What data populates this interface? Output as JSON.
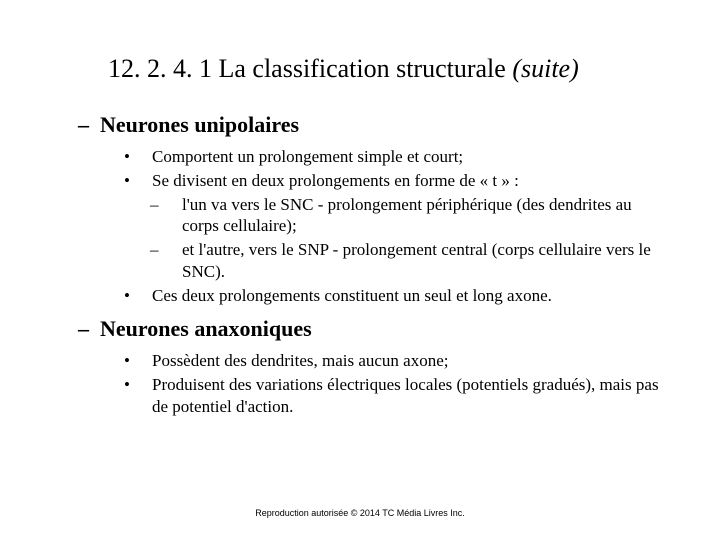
{
  "title": {
    "number": "12. 2. 4. 1",
    "text": "La classification structurale",
    "suffix": "(suite)"
  },
  "section1": {
    "heading": "Neurones unipolaires",
    "bullets": [
      "Comportent un prolongement simple et court;",
      "Se divisent en deux prolongements en forme de « t » :"
    ],
    "subdashes": [
      "l'un va vers le SNC - prolongement périphérique (des dendrites au corps cellulaire);",
      "et l'autre, vers le SNP - prolongement central (corps cellulaire vers le SNC)."
    ],
    "bullet3": "Ces deux prolongements constituent un seul et long axone."
  },
  "section2": {
    "heading": "Neurones anaxoniques",
    "bullets": [
      "Possèdent des dendrites, mais aucun axone;",
      "Produisent des variations électriques locales (potentiels gradués), mais pas de potentiel d'action."
    ]
  },
  "footer": "Reproduction autorisée © 2014 TC Média Livres Inc.",
  "style": {
    "background": "#ffffff",
    "text_color": "#000000",
    "title_fontsize": 26,
    "heading_fontsize": 22,
    "body_fontsize": 17,
    "footer_fontsize": 9,
    "dash_glyph": "–",
    "bullet_glyph": "•"
  }
}
